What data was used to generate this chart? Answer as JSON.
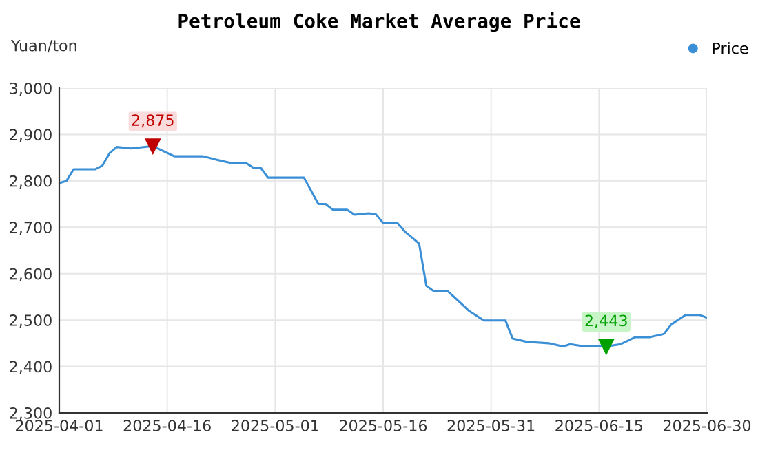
{
  "chart_data": {
    "type": "line",
    "title": "Petroleum Coke Market Average Price",
    "ylabel": "Yuan/ton",
    "x": [
      "2025-04-01",
      "2025-04-02",
      "2025-04-03",
      "2025-04-06",
      "2025-04-07",
      "2025-04-08",
      "2025-04-09",
      "2025-04-11",
      "2025-04-14",
      "2025-04-17",
      "2025-04-21",
      "2025-04-23",
      "2025-04-25",
      "2025-04-27",
      "2025-04-28",
      "2025-04-29",
      "2025-04-30",
      "2025-05-05",
      "2025-05-07",
      "2025-05-08",
      "2025-05-09",
      "2025-05-11",
      "2025-05-12",
      "2025-05-14",
      "2025-05-15",
      "2025-05-16",
      "2025-05-18",
      "2025-05-19",
      "2025-05-21",
      "2025-05-22",
      "2025-05-23",
      "2025-05-25",
      "2025-05-26",
      "2025-05-28",
      "2025-05-30",
      "2025-06-02",
      "2025-06-03",
      "2025-06-05",
      "2025-06-08",
      "2025-06-10",
      "2025-06-11",
      "2025-06-13",
      "2025-06-16",
      "2025-06-18",
      "2025-06-20",
      "2025-06-22",
      "2025-06-24",
      "2025-06-25",
      "2025-06-27",
      "2025-06-29",
      "2025-06-30"
    ],
    "series": [
      {
        "name": "Price",
        "color": "#3a8fd6",
        "values": [
          2795,
          2800,
          2825,
          2825,
          2833,
          2860,
          2873,
          2870,
          2875,
          2853,
          2853,
          2845,
          2838,
          2838,
          2828,
          2828,
          2807,
          2807,
          2750,
          2750,
          2738,
          2738,
          2727,
          2730,
          2728,
          2709,
          2709,
          2691,
          2665,
          2574,
          2563,
          2562,
          2548,
          2519,
          2499,
          2499,
          2460,
          2453,
          2450,
          2443,
          2448,
          2443,
          2443,
          2448,
          2463,
          2463,
          2470,
          2490,
          2511,
          2511,
          2505
        ]
      }
    ],
    "annotations": [
      {
        "text": "2,875",
        "x": "2025-04-14",
        "y": 2875
      },
      {
        "text": "2,443",
        "x": "2025-06-16",
        "y": 2443
      }
    ],
    "xlim": [
      "2025-04-01",
      "2025-06-30"
    ],
    "xticks": [
      "2025-04-01",
      "2025-04-16",
      "2025-05-01",
      "2025-05-16",
      "2025-05-31",
      "2025-06-15",
      "2025-06-30"
    ],
    "ylim": [
      2300,
      3000
    ],
    "yticks": [
      {
        "value": 2300,
        "label": "2,300"
      },
      {
        "value": 2400,
        "label": "2,400"
      },
      {
        "value": 2500,
        "label": "2,500"
      },
      {
        "value": 2600,
        "label": "2,600"
      },
      {
        "value": 2700,
        "label": "2,700"
      },
      {
        "value": 2800,
        "label": "2,800"
      },
      {
        "value": 2900,
        "label": "2,900"
      },
      {
        "value": 3000,
        "label": "3,000"
      }
    ],
    "grid": true,
    "legend": "top right",
    "marker": "none",
    "line_style": "solid"
  }
}
